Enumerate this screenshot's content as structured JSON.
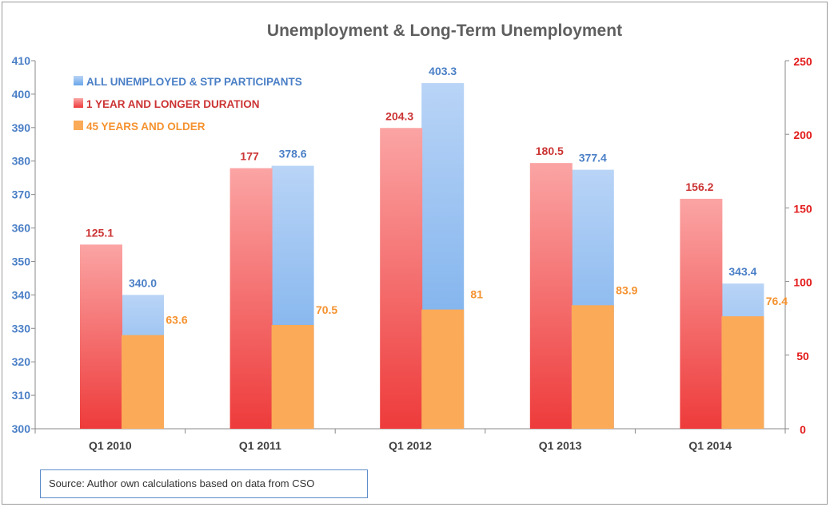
{
  "chart_data": {
    "type": "bar",
    "title": "Unemployment & Long-Term Unemployment",
    "categories": [
      "Q1 2010",
      "Q1 2011",
      "Q1 2012",
      "Q1 2013",
      "Q1 2014"
    ],
    "series": [
      {
        "name": "ALL UNEMPLOYED & STP PARTICIPANTS",
        "axis": "left",
        "values": [
          340.0,
          378.6,
          403.3,
          377.4,
          343.4
        ],
        "labels": [
          "340.0",
          "378.6",
          "403.3",
          "377.4",
          "343.4"
        ],
        "color": "#4a7fc6",
        "color_light": "#b9d4f6",
        "color_dark": "#6aa6ea"
      },
      {
        "name": "1 YEAR AND LONGER DURATION",
        "axis": "right",
        "values": [
          125.1,
          177,
          204.3,
          180.5,
          156.2
        ],
        "labels": [
          "125.1",
          "177",
          "204.3",
          "180.5",
          "156.2"
        ],
        "color": "#cc3333",
        "color_light": "#fba4a4",
        "color_dark": "#ee3b3b"
      },
      {
        "name": "45 YEARS AND OLDER",
        "axis": "right",
        "values": [
          63.6,
          70.5,
          81,
          83.9,
          76.4
        ],
        "labels": [
          "63.6",
          "70.5",
          "81",
          "83.9",
          "76.4"
        ],
        "color": "#f5922f",
        "color_light": "#fbaa58",
        "color_dark": "#fbaa58"
      }
    ],
    "left_axis": {
      "min": 300,
      "max": 410,
      "ticks": [
        300,
        310,
        320,
        330,
        340,
        350,
        360,
        370,
        380,
        390,
        400,
        410
      ],
      "color": "#4a7fc6"
    },
    "right_axis": {
      "min": 0,
      "max": 250,
      "ticks": [
        0,
        50,
        100,
        150,
        200,
        250
      ],
      "color": "#e31b1b"
    },
    "grid": false,
    "legend_position": "top-left"
  },
  "source_note": "Source: Author own calculations based on data from CSO"
}
